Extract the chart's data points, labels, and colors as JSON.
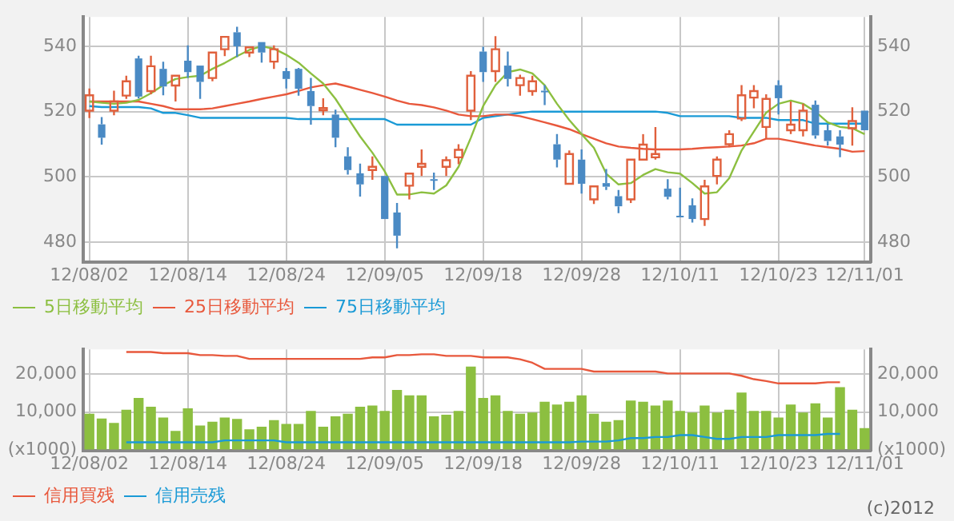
{
  "chart_data": [
    {
      "type": "candlestick",
      "categories": [
        "12/08/02",
        null,
        null,
        null,
        null,
        null,
        null,
        null,
        "12/08/14",
        null,
        null,
        null,
        null,
        null,
        null,
        null,
        "12/08/24",
        null,
        null,
        null,
        null,
        null,
        null,
        null,
        "12/09/05",
        null,
        null,
        null,
        null,
        null,
        null,
        null,
        "12/09/18",
        null,
        null,
        null,
        null,
        null,
        null,
        null,
        "12/09/28",
        null,
        null,
        null,
        null,
        null,
        null,
        null,
        "12/10/11",
        null,
        null,
        null,
        null,
        null,
        null,
        null,
        "12/10/23",
        null,
        null,
        null,
        null,
        null,
        null,
        "12/11/01"
      ],
      "ohlc": [
        [
          520.3,
          527.1,
          518,
          525
        ],
        [
          516.1,
          518.3,
          509.9,
          512
        ],
        [
          520.3,
          526.4,
          518.9,
          523.1
        ],
        [
          524.9,
          531,
          523.9,
          529.3
        ],
        [
          536.3,
          537.1,
          524,
          524.6
        ],
        [
          526.3,
          537.1,
          525.3,
          533.9
        ],
        [
          533.1,
          535.3,
          525,
          527.7
        ],
        [
          528,
          531,
          523.1,
          531
        ],
        [
          535.6,
          540.3,
          530.3,
          532.1
        ],
        [
          534.1,
          534.1,
          523.9,
          529.1
        ],
        [
          530.3,
          538.1,
          529.3,
          538.1
        ],
        [
          539.1,
          542.9,
          537,
          542.9
        ],
        [
          544.3,
          546,
          536.7,
          540
        ],
        [
          538.1,
          539.7,
          536.7,
          539.7
        ],
        [
          541.3,
          541.3,
          535,
          538.1
        ],
        [
          535.3,
          540.3,
          533.1,
          539.1
        ],
        [
          532.4,
          533.4,
          527.1,
          530
        ],
        [
          533.1,
          533.4,
          524.9,
          527
        ],
        [
          526.3,
          530.3,
          516,
          521.7
        ],
        [
          520.4,
          524.1,
          518.9,
          521.1
        ],
        [
          519.1,
          520.6,
          509.1,
          512
        ],
        [
          506.3,
          509.1,
          500.7,
          502.1
        ],
        [
          501.1,
          504.1,
          494,
          497.7
        ],
        [
          502.1,
          506.3,
          499.1,
          503.1
        ],
        [
          500.3,
          500.3,
          487.1,
          487.1
        ],
        [
          489.1,
          492,
          478.1,
          482
        ],
        [
          497.3,
          501,
          493.1,
          501
        ],
        [
          503.1,
          508.4,
          500.3,
          504
        ],
        [
          499.3,
          501.3,
          496,
          499.1
        ],
        [
          503.1,
          506.3,
          500.3,
          505.1
        ],
        [
          506,
          510,
          503.9,
          508.3
        ],
        [
          520.3,
          532.4,
          517.4,
          531
        ],
        [
          538.4,
          539.9,
          529.1,
          532.1
        ],
        [
          532.4,
          543.1,
          529.1,
          539.1
        ],
        [
          534.1,
          538.4,
          527.7,
          530
        ],
        [
          528.1,
          531.3,
          524.9,
          530.3
        ],
        [
          526.3,
          531,
          524.9,
          529.3
        ],
        [
          526.4,
          528.1,
          522,
          526.3
        ],
        [
          510,
          513.1,
          502.9,
          505.3
        ],
        [
          497.9,
          508.1,
          497.9,
          507
        ],
        [
          505.3,
          508.4,
          494.9,
          497.9
        ],
        [
          493.1,
          497.1,
          491.7,
          497.1
        ],
        [
          498.1,
          502.4,
          496,
          497
        ],
        [
          494.1,
          496,
          488.9,
          491
        ],
        [
          493.1,
          505.3,
          492,
          505.3
        ],
        [
          505.3,
          513.1,
          505.3,
          509.9
        ],
        [
          506,
          515.3,
          505.3,
          507
        ],
        [
          496.4,
          499.3,
          493.1,
          493.9
        ],
        [
          488.1,
          496.7,
          487.9,
          487.9
        ],
        [
          491.3,
          493.4,
          486,
          487.1
        ],
        [
          487.1,
          499.1,
          485,
          497.1
        ],
        [
          500.3,
          506.3,
          497.7,
          505.3
        ],
        [
          510,
          514.3,
          509.1,
          513.1
        ],
        [
          517.9,
          528.1,
          517.1,
          525
        ],
        [
          524.3,
          528.1,
          521,
          526.3
        ],
        [
          515.3,
          525.3,
          511.7,
          523.9
        ],
        [
          528.1,
          529.6,
          519.1,
          524.1
        ],
        [
          514.3,
          523.1,
          513.1,
          516
        ],
        [
          514.3,
          522.4,
          512.4,
          520.3
        ],
        [
          522.1,
          523.4,
          511.7,
          512.7
        ],
        [
          514.3,
          516,
          509.6,
          511
        ],
        [
          512.4,
          514.3,
          506,
          509.9
        ],
        [
          514.9,
          521.3,
          509.6,
          517.1
        ],
        [
          520.3,
          520.3,
          514.3,
          514.3
        ]
      ],
      "colors": [
        "#e0603c",
        "#4a8ac4",
        "#e0603c",
        "#e0603c",
        "#4a8ac4",
        "#e0603c",
        "#4a8ac4",
        "#e0603c",
        "#4a8ac4",
        "#4a8ac4",
        "#e0603c",
        "#e0603c",
        "#4a8ac4",
        "#e0603c",
        "#4a8ac4",
        "#e0603c",
        "#4a8ac4",
        "#4a8ac4",
        "#4a8ac4",
        "#e0603c",
        "#4a8ac4",
        "#4a8ac4",
        "#4a8ac4",
        "#e0603c",
        "#4a8ac4",
        "#4a8ac4",
        "#e0603c",
        "#e0603c",
        "#4a8ac4",
        "#e0603c",
        "#e0603c",
        "#e0603c",
        "#4a8ac4",
        "#e0603c",
        "#4a8ac4",
        "#e0603c",
        "#e0603c",
        "#4a8ac4",
        "#4a8ac4",
        "#e0603c",
        "#4a8ac4",
        "#e0603c",
        "#4a8ac4",
        "#4a8ac4",
        "#e0603c",
        "#e0603c",
        "#e0603c",
        "#4a8ac4",
        "#4a8ac4",
        "#4a8ac4",
        "#e0603c",
        "#e0603c",
        "#e0603c",
        "#e0603c",
        "#e0603c",
        "#e0603c",
        "#4a8ac4",
        "#e0603c",
        "#e0603c",
        "#4a8ac4",
        "#4a8ac4",
        "#4a8ac4",
        "#e0603c",
        "#4a8ac4"
      ],
      "series": [
        {
          "type": "line",
          "name": "5日移動平均",
          "color": "#8cbf40",
          "values": [
            523.1,
            522.7,
            522.4,
            522.7,
            523.6,
            525.6,
            528.1,
            530,
            530.6,
            531,
            533.1,
            534.9,
            537,
            538.9,
            540,
            539.3,
            537.4,
            535,
            531.7,
            528.6,
            523.9,
            518.1,
            512.4,
            507.4,
            501.7,
            494.6,
            494.6,
            495.3,
            494.9,
            497.4,
            503.1,
            512,
            521.7,
            528.1,
            532.1,
            532.9,
            531.7,
            528.1,
            522.4,
            517.4,
            513.1,
            508.9,
            501,
            497.7,
            498.1,
            500.6,
            502.4,
            501.4,
            501,
            498.1,
            494.9,
            495.3,
            499.6,
            508.1,
            513.9,
            519.7,
            522.4,
            523.4,
            522.4,
            520,
            516.7,
            515.3,
            514.9,
            513.1
          ]
        },
        {
          "type": "line",
          "name": "25日移動平均",
          "color": "#e8583c",
          "values": [
            523.1,
            523.1,
            523.1,
            523.1,
            523.1,
            522.4,
            521.7,
            520.7,
            520.7,
            520.7,
            521,
            521.7,
            522.4,
            523.1,
            523.9,
            524.6,
            525.3,
            526.3,
            527.4,
            528.1,
            528.6,
            527.7,
            526.7,
            525.7,
            524.6,
            523.4,
            522.4,
            522,
            521.3,
            520.3,
            519.1,
            518.6,
            518.6,
            519.1,
            519.1,
            518.6,
            517.7,
            516.7,
            515.7,
            514.6,
            513.1,
            511.7,
            510.3,
            509.3,
            508.9,
            508.6,
            508.4,
            508.4,
            508.4,
            508.6,
            508.9,
            509.1,
            509.3,
            509.6,
            510.3,
            511.7,
            511.7,
            511,
            510.3,
            509.6,
            509.1,
            508.6,
            507.7,
            507.9
          ]
        },
        {
          "type": "line",
          "name": "75日移動平均",
          "color": "#1a9ad6",
          "values": [
            521.7,
            521.4,
            521.4,
            521.4,
            521.4,
            521,
            519.6,
            519.6,
            518.9,
            518.1,
            518.1,
            518.1,
            518.1,
            518.1,
            518.1,
            518.1,
            518.1,
            517.7,
            517.7,
            517.7,
            517.7,
            517.7,
            517.7,
            517.7,
            517.7,
            516,
            516,
            516,
            516,
            516,
            516,
            516,
            518.1,
            518.6,
            519.1,
            519.6,
            520,
            520,
            520,
            520,
            520,
            520,
            520,
            520,
            520,
            520,
            520,
            519.6,
            518.6,
            518.6,
            518.6,
            518.6,
            518.6,
            518.1,
            518.1,
            518.1,
            517.4,
            517.4,
            517.4,
            516.3,
            516.3,
            516.3,
            516.3,
            516.3
          ]
        }
      ],
      "ylim": [
        474,
        549
      ],
      "yticks": [
        480,
        500,
        520,
        540
      ],
      "y2lim": [
        474,
        549
      ],
      "y2ticks": [
        480,
        500,
        520,
        540
      ],
      "grid": true,
      "legend": "bottom",
      "marker": "none"
    },
    {
      "type": "bar",
      "categories": [
        "12/08/02",
        null,
        null,
        null,
        null,
        null,
        null,
        null,
        "12/08/14",
        null,
        null,
        null,
        null,
        null,
        null,
        null,
        "12/08/24",
        null,
        null,
        null,
        null,
        null,
        null,
        null,
        "12/09/05",
        null,
        null,
        null,
        null,
        null,
        null,
        null,
        "12/09/18",
        null,
        null,
        null,
        null,
        null,
        null,
        null,
        "12/09/28",
        null,
        null,
        null,
        null,
        null,
        null,
        null,
        "12/10/11",
        null,
        null,
        null,
        null,
        null,
        null,
        null,
        "12/10/23",
        null,
        null,
        null,
        null,
        null,
        null,
        "12/11/01"
      ],
      "series": [
        {
          "type": "bar",
          "color": "#8cbf40",
          "values": [
            9600,
            8300,
            7200,
            10600,
            13700,
            11400,
            8600,
            5100,
            11000,
            6500,
            7500,
            8600,
            8200,
            5500,
            6200,
            7900,
            6900,
            6900,
            10300,
            6200,
            8900,
            9600,
            11400,
            11700,
            10300,
            15800,
            14400,
            14400,
            8900,
            9300,
            10300,
            21900,
            13700,
            14400,
            10300,
            9600,
            9900,
            12700,
            12000,
            12700,
            14400,
            9600,
            7500,
            7900,
            13000,
            12700,
            11700,
            13000,
            10300,
            9900,
            11700,
            9900,
            10600,
            15100,
            10300,
            10300,
            8600,
            12000,
            9900,
            12300,
            8600,
            16500,
            10600,
            5800
          ]
        },
        {
          "type": "line",
          "name": "信用買残",
          "color": "#e8583c",
          "values": [
            null,
            null,
            null,
            25700,
            25700,
            25700,
            25400,
            25400,
            25400,
            24900,
            24900,
            24700,
            24700,
            23900,
            23900,
            23900,
            23900,
            23900,
            23900,
            23900,
            23900,
            23900,
            23900,
            24300,
            24300,
            24900,
            24900,
            25100,
            25100,
            24700,
            24700,
            24700,
            24300,
            24300,
            24300,
            23800,
            22900,
            21300,
            21300,
            21300,
            21300,
            20600,
            20600,
            20600,
            20600,
            20600,
            20600,
            20100,
            20100,
            20100,
            20100,
            20100,
            20100,
            19500,
            18600,
            18100,
            17500,
            17500,
            17500,
            17500,
            17800,
            17800,
            null,
            null
          ]
        },
        {
          "type": "line",
          "name": "信用売残",
          "color": "#1a9ad6",
          "values": [
            null,
            null,
            null,
            2100,
            2100,
            2100,
            2100,
            2100,
            2100,
            2100,
            2100,
            2600,
            2600,
            2600,
            2600,
            2600,
            2100,
            2100,
            2100,
            2100,
            2100,
            2100,
            2100,
            2100,
            2100,
            2100,
            2100,
            2100,
            2100,
            2100,
            2100,
            2100,
            2100,
            2100,
            2100,
            2100,
            2100,
            2100,
            2100,
            2100,
            2300,
            2300,
            2300,
            2600,
            3200,
            3200,
            3500,
            3500,
            4000,
            4000,
            3500,
            3000,
            3000,
            3500,
            3500,
            3500,
            4000,
            4000,
            4000,
            4000,
            4300,
            4300,
            null,
            null
          ]
        }
      ],
      "ylim": [
        0,
        26400
      ],
      "yticks": [
        {
          "value": 0,
          "label": "(x1000)"
        },
        {
          "value": 10000,
          "label": "10,000"
        },
        {
          "value": 20000,
          "label": "20,000"
        }
      ],
      "y2lim": [
        0,
        26400
      ],
      "y2ticks": [
        {
          "value": 0,
          "label": "(x1000)"
        },
        {
          "value": 10000,
          "label": "10,000"
        },
        {
          "value": 20000,
          "label": "20,000"
        }
      ],
      "grid": true,
      "legend": "bottom",
      "marker": "none",
      "annotations": [
        "(c)2012"
      ]
    }
  ]
}
